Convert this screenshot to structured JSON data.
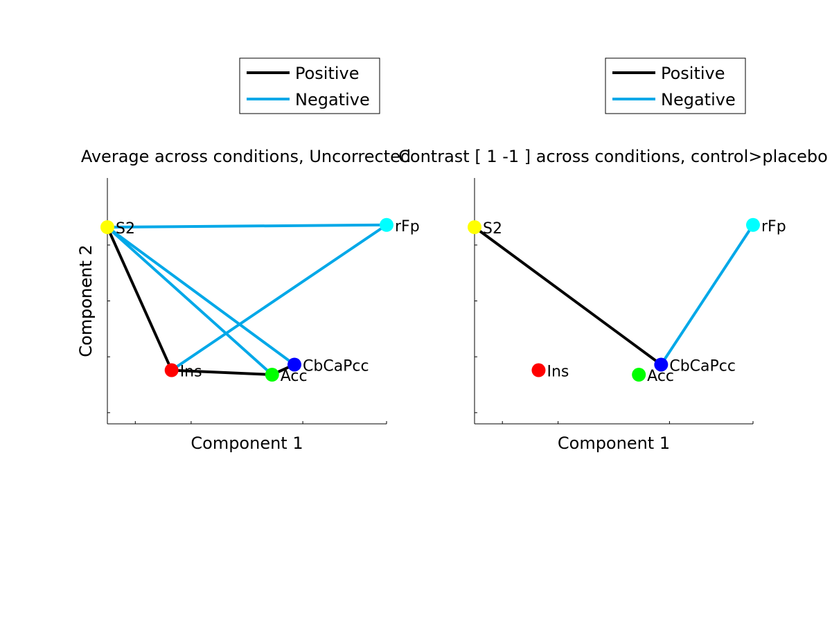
{
  "chart_data": [
    {
      "type": "scatter",
      "title": "Average across conditions, Uncorrected",
      "xlabel": "Component 1",
      "ylabel": "Component 2",
      "legend": {
        "placement": "above-plot",
        "entries": [
          {
            "label": "Positive",
            "color": "#000000"
          },
          {
            "label": "Negative",
            "color": "#00a8e8"
          }
        ]
      },
      "nodes": [
        {
          "name": "S2",
          "x": 0.0,
          "y": 0.83,
          "color": "#ffff00"
        },
        {
          "name": "rFp",
          "x": 1.0,
          "y": 0.84,
          "color": "#00ffff"
        },
        {
          "name": "Ins",
          "x": 0.23,
          "y": 0.19,
          "color": "#ff0000"
        },
        {
          "name": "Acc",
          "x": 0.59,
          "y": 0.17,
          "color": "#00ff00"
        },
        {
          "name": "CbCaPcc",
          "x": 0.67,
          "y": 0.215,
          "color": "#0000ff"
        }
      ],
      "edges": [
        {
          "from": "S2",
          "to": "rFp",
          "sign": "Negative"
        },
        {
          "from": "S2",
          "to": "Ins",
          "sign": "Positive"
        },
        {
          "from": "S2",
          "to": "Acc",
          "sign": "Negative"
        },
        {
          "from": "S2",
          "to": "CbCaPcc",
          "sign": "Negative"
        },
        {
          "from": "Ins",
          "to": "rFp",
          "sign": "Negative"
        },
        {
          "from": "Ins",
          "to": "Acc",
          "sign": "Positive"
        },
        {
          "from": "Acc",
          "to": "CbCaPcc",
          "sign": "Positive"
        }
      ]
    },
    {
      "type": "scatter",
      "title": "Contrast [  1  -1 ] across conditions, control>placebo",
      "xlabel": "Component 1",
      "ylabel": "Component 2",
      "legend": {
        "placement": "above-plot",
        "entries": [
          {
            "label": "Positive",
            "color": "#000000"
          },
          {
            "label": "Negative",
            "color": "#00a8e8"
          }
        ]
      },
      "nodes": [
        {
          "name": "S2",
          "x": 0.0,
          "y": 0.83,
          "color": "#ffff00"
        },
        {
          "name": "rFp",
          "x": 1.0,
          "y": 0.84,
          "color": "#00ffff"
        },
        {
          "name": "Ins",
          "x": 0.23,
          "y": 0.19,
          "color": "#ff0000"
        },
        {
          "name": "Acc",
          "x": 0.59,
          "y": 0.17,
          "color": "#00ff00"
        },
        {
          "name": "CbCaPcc",
          "x": 0.67,
          "y": 0.215,
          "color": "#0000ff"
        }
      ],
      "edges": [
        {
          "from": "S2",
          "to": "CbCaPcc",
          "sign": "Positive"
        },
        {
          "from": "CbCaPcc",
          "to": "rFp",
          "sign": "Negative"
        }
      ]
    }
  ]
}
